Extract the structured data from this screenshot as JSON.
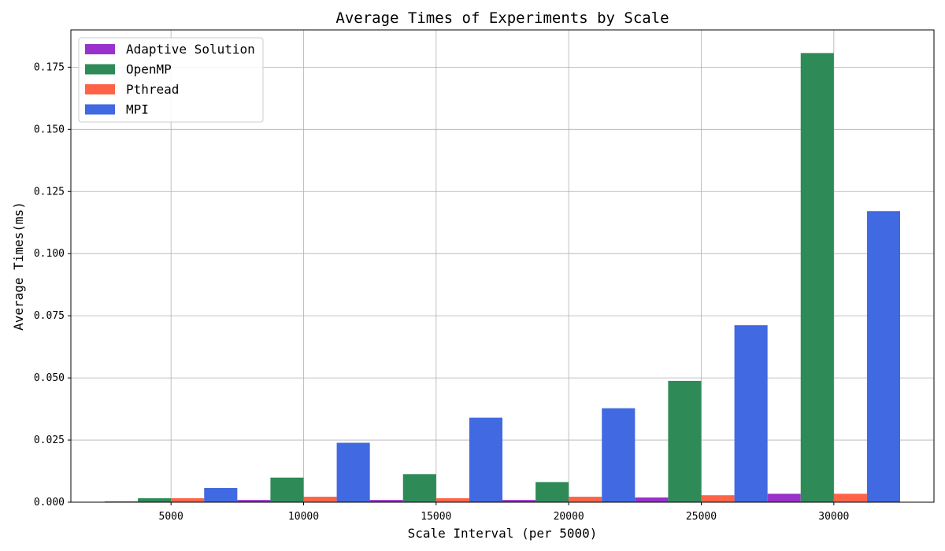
{
  "chart_data": {
    "type": "bar",
    "title": "Average Times of Experiments by Scale",
    "xlabel": "Scale Interval (per 5000)",
    "ylabel": "Average Times(ms)",
    "categories": [
      "5000",
      "10000",
      "15000",
      "20000",
      "25000",
      "30000"
    ],
    "ylim": [
      0,
      0.19
    ],
    "yticks": [
      "0.000",
      "0.025",
      "0.050",
      "0.075",
      "0.100",
      "0.125",
      "0.150",
      "0.175"
    ],
    "ytick_values": [
      0,
      0.025,
      0.05,
      0.075,
      0.1,
      0.125,
      0.15,
      0.175
    ],
    "grid": true,
    "legend_position": "top-left",
    "series": [
      {
        "name": "Adaptive Solution",
        "color": "#9932cc",
        "values": [
          0.0003,
          0.0009,
          0.0009,
          0.0009,
          0.0019,
          0.0034
        ]
      },
      {
        "name": "OpenMP",
        "color": "#2e8b57",
        "values": [
          0.0016,
          0.0099,
          0.0113,
          0.0081,
          0.0488,
          0.1807
        ]
      },
      {
        "name": "Pthread",
        "color": "#ff6347",
        "values": [
          0.0016,
          0.0022,
          0.0016,
          0.0022,
          0.0028,
          0.0034
        ]
      },
      {
        "name": "MPI",
        "color": "#4169e1",
        "values": [
          0.0057,
          0.0239,
          0.034,
          0.0378,
          0.0712,
          0.1171
        ]
      }
    ]
  }
}
